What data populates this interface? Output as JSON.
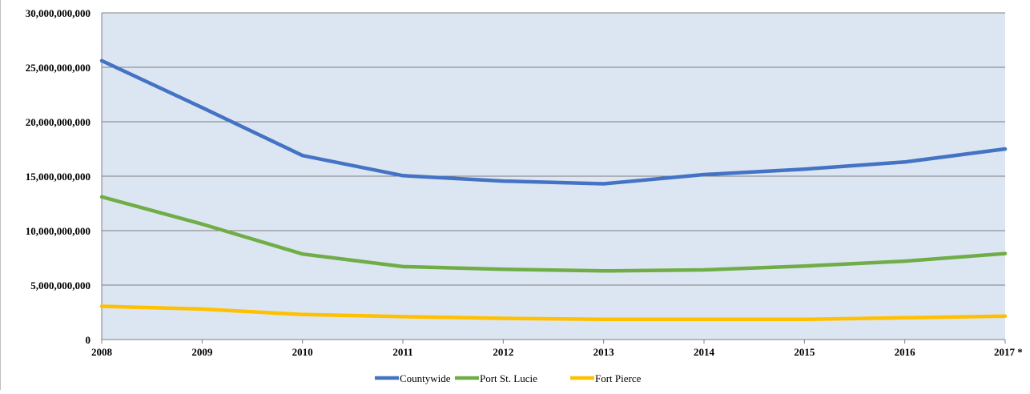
{
  "chart_data": {
    "type": "line",
    "x": [
      "2008",
      "2009",
      "2010",
      "2011",
      "2012",
      "2013",
      "2014",
      "2015",
      "2016",
      "2017 *"
    ],
    "series": [
      {
        "name": "Countywide",
        "color": "#4472C4",
        "values": [
          25600000000,
          21300000000,
          16900000000,
          15050000000,
          14550000000,
          14300000000,
          15150000000,
          15650000000,
          16300000000,
          17500000000
        ]
      },
      {
        "name": "Port St. Lucie",
        "color": "#70AD47",
        "values": [
          13100000000,
          10600000000,
          7850000000,
          6700000000,
          6450000000,
          6300000000,
          6400000000,
          6750000000,
          7200000000,
          7900000000
        ]
      },
      {
        "name": "Fort Pierce",
        "color": "#FFC000",
        "values": [
          3050000000,
          2800000000,
          2300000000,
          2100000000,
          1950000000,
          1850000000,
          1850000000,
          1850000000,
          2000000000,
          2150000000
        ]
      }
    ],
    "yticks": [
      "0",
      "5,000,000,000",
      "10,000,000,000",
      "15,000,000,000",
      "20,000,000,000",
      "25,000,000,000",
      "30,000,000,000"
    ],
    "ylim": [
      0,
      30000000000
    ],
    "grid": true,
    "legend_position": "bottom",
    "plot_background": "#DCE6F2",
    "gridline_color": "#7f7f7f"
  }
}
